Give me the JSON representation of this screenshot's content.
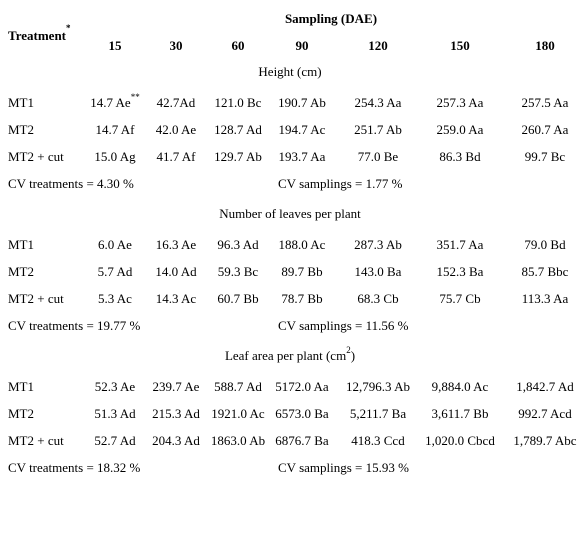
{
  "header": {
    "treatment": "Treatment",
    "treatment_note": "*",
    "sampling": "Sampling (DAE)",
    "days": [
      "15",
      "30",
      "60",
      "90",
      "120",
      "150",
      "180"
    ]
  },
  "sections": [
    {
      "title": {
        "text": "Height (cm)"
      },
      "rows": [
        {
          "label": "MT1",
          "cells": [
            {
              "text": "14.7 Ae",
              "sup": "**"
            },
            {
              "text": "42.7Ad"
            },
            {
              "text": "121.0 Bc"
            },
            {
              "text": "190.7 Ab"
            },
            {
              "text": "254.3 Aa"
            },
            {
              "text": "257.3 Aa"
            },
            {
              "text": "257.5 Aa"
            }
          ]
        },
        {
          "label": "MT2",
          "cells": [
            {
              "text": "14.7 Af"
            },
            {
              "text": "42.0 Ae"
            },
            {
              "text": "128.7 Ad"
            },
            {
              "text": "194.7 Ac"
            },
            {
              "text": "251.7 Ab"
            },
            {
              "text": "259.0 Aa"
            },
            {
              "text": "260.7 Aa"
            }
          ]
        },
        {
          "label": "MT2 + cut",
          "cells": [
            {
              "text": "15.0 Ag"
            },
            {
              "text": "41.7 Af"
            },
            {
              "text": "129.7 Ab"
            },
            {
              "text": "193.7 Aa"
            },
            {
              "text": "77.0 Be"
            },
            {
              "text": "86.3 Bd"
            },
            {
              "text": "99.7 Bc"
            }
          ]
        }
      ],
      "cv_treatments": "CV treatments = 4.30 %",
      "cv_samplings": "CV samplings = 1.77 %"
    },
    {
      "title": {
        "text": "Number of leaves per plant"
      },
      "rows": [
        {
          "label": "MT1",
          "cells": [
            {
              "text": "6.0 Ae"
            },
            {
              "text": "16.3 Ae"
            },
            {
              "text": "96.3 Ad"
            },
            {
              "text": "188.0 Ac"
            },
            {
              "text": "287.3 Ab"
            },
            {
              "text": "351.7 Aa"
            },
            {
              "text": "79.0 Bd"
            }
          ]
        },
        {
          "label": "MT2",
          "cells": [
            {
              "text": "5.7 Ad"
            },
            {
              "text": "14.0 Ad"
            },
            {
              "text": "59.3 Bc"
            },
            {
              "text": "89.7 Bb"
            },
            {
              "text": "143.0 Ba"
            },
            {
              "text": "152.3 Ba"
            },
            {
              "text": "85.7 Bbc"
            }
          ]
        },
        {
          "label": "MT2 + cut",
          "cells": [
            {
              "text": "5.3 Ac"
            },
            {
              "text": "14.3 Ac"
            },
            {
              "text": "60.7 Bb"
            },
            {
              "text": "78.7 Bb"
            },
            {
              "text": "68.3 Cb"
            },
            {
              "text": "75.7 Cb"
            },
            {
              "text": "113.3 Aa"
            }
          ]
        }
      ],
      "cv_treatments": "CV treatments = 19.77 %",
      "cv_samplings": "CV samplings = 11.56 %"
    },
    {
      "title": {
        "text": "Leaf area per plant (cm",
        "sup": "2",
        "tail": ")"
      },
      "rows": [
        {
          "label": "MT1",
          "cells": [
            {
              "text": "52.3 Ae"
            },
            {
              "text": "239.7 Ae"
            },
            {
              "text": "588.7 Ad"
            },
            {
              "text": "5172.0 Aa"
            },
            {
              "text": "12,796.3 Ab"
            },
            {
              "text": "9,884.0 Ac"
            },
            {
              "text": "1,842.7 Ad"
            }
          ]
        },
        {
          "label": "MT2",
          "cells": [
            {
              "text": "51.3 Ad"
            },
            {
              "text": "215.3 Ad"
            },
            {
              "text": "1921.0 Ac"
            },
            {
              "text": "6573.0 Ba"
            },
            {
              "text": "5,211.7 Ba"
            },
            {
              "text": "3,611.7 Bb"
            },
            {
              "text": "992.7 Acd"
            }
          ]
        },
        {
          "label": "MT2 + cut",
          "cells": [
            {
              "text": "52.7 Ad"
            },
            {
              "text": "204.3 Ad"
            },
            {
              "text": "1863.0 Ab"
            },
            {
              "text": "6876.7 Ba"
            },
            {
              "text": "418.3 Ccd"
            },
            {
              "text": "1,020.0 Cbcd"
            },
            {
              "text": "1,789.7 Abc"
            }
          ]
        }
      ],
      "cv_treatments": "CV treatments = 18.32 %",
      "cv_samplings": "CV samplings = 15.93 %"
    }
  ]
}
